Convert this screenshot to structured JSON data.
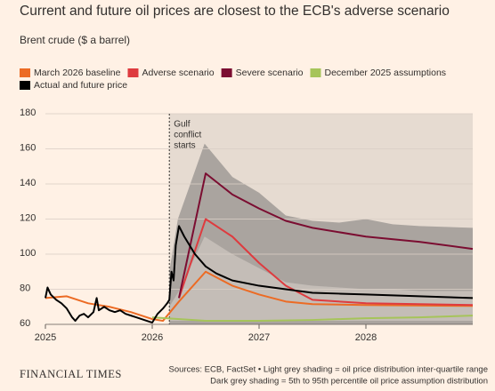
{
  "chart_data": {
    "type": "line",
    "title": "Current and future oil prices are closest to the ECB's adverse scenario",
    "subtitle": "Brent crude ($ a barrel)",
    "xlim": [
      2025,
      2029
    ],
    "xticks": [
      2025,
      2026,
      2027,
      2028
    ],
    "ylim": [
      60,
      180
    ],
    "yticks": [
      60,
      80,
      100,
      120,
      140,
      160,
      180
    ],
    "grid": true,
    "annotation": {
      "lines": [
        "Gulf",
        "conflict",
        "starts"
      ],
      "x": 2026.16,
      "shade_color": "#e6dbd1"
    },
    "bands": [
      {
        "color": "#aaa49f",
        "x": [
          2026.16,
          2026.24,
          2026.49,
          2026.75,
          2027,
          2027.25,
          2027.5,
          2027.75,
          2028,
          2028.25,
          2028.5,
          2029
        ],
        "upper": [
          90,
          120,
          163,
          144,
          135,
          122,
          119,
          118,
          120,
          117,
          116,
          115
        ],
        "lower": [
          60,
          60,
          60,
          60,
          60,
          60,
          60,
          60,
          60,
          60,
          60,
          60
        ]
      },
      {
        "color": "#c4bdb7",
        "x": [
          2026.16,
          2026.24,
          2026.49,
          2026.75,
          2027,
          2027.25,
          2027.5,
          2027.75,
          2028,
          2028.25,
          2028.5,
          2029
        ],
        "upper": [
          70,
          78,
          110,
          100,
          92,
          84,
          82,
          81,
          80,
          80,
          79,
          79
        ],
        "lower": [
          62,
          62,
          62,
          62,
          62,
          62,
          62,
          62,
          62,
          62,
          62,
          62
        ]
      }
    ],
    "series": [
      {
        "name": "March 2026 baseline",
        "color": "#ec6b24",
        "x": [
          2025,
          2025.2,
          2025.4,
          2025.6,
          2025.8,
          2026,
          2026.1,
          2026.25,
          2026.5,
          2026.75,
          2027,
          2027.25,
          2027.5,
          2028,
          2029
        ],
        "values": [
          75,
          76,
          72,
          70,
          67,
          63,
          62,
          73,
          90,
          82,
          77,
          73,
          71.5,
          71,
          70.5
        ]
      },
      {
        "name": "Adverse scenario",
        "color": "#de3b3f",
        "x": [
          2026.25,
          2026.5,
          2026.75,
          2027,
          2027.25,
          2027.5,
          2028,
          2029
        ],
        "values": [
          75,
          120,
          110,
          95,
          82,
          74,
          72,
          71
        ]
      },
      {
        "name": "Severe scenario",
        "color": "#7b0d31",
        "x": [
          2026.25,
          2026.5,
          2026.75,
          2027,
          2027.25,
          2027.5,
          2028,
          2028.5,
          2029
        ],
        "values": [
          75,
          146,
          134,
          126,
          119,
          115,
          110,
          107,
          103
        ]
      },
      {
        "name": "December 2025 assumptions",
        "color": "#a6c45a",
        "x": [
          2026,
          2026.5,
          2027,
          2027.5,
          2028,
          2028.5,
          2029
        ],
        "values": [
          64,
          62,
          62,
          62.5,
          63.5,
          64,
          65
        ]
      },
      {
        "name": "Actual and future price",
        "color": "#000000",
        "x": [
          2025,
          2025.02,
          2025.05,
          2025.1,
          2025.15,
          2025.2,
          2025.25,
          2025.28,
          2025.32,
          2025.36,
          2025.4,
          2025.45,
          2025.48,
          2025.5,
          2025.55,
          2025.6,
          2025.65,
          2025.7,
          2025.75,
          2025.8,
          2025.85,
          2025.9,
          2025.95,
          2026,
          2026.05,
          2026.1,
          2026.14,
          2026.16,
          2026.18,
          2026.2,
          2026.22,
          2026.25,
          2026.3,
          2026.4,
          2026.5,
          2026.6,
          2026.75,
          2027,
          2027.25,
          2027.5,
          2027.75,
          2028,
          2028.25,
          2028.5,
          2028.75,
          2029
        ],
        "values": [
          75,
          81,
          77,
          74,
          72,
          69,
          64,
          62,
          65,
          66,
          64,
          67,
          75,
          68,
          70,
          68,
          67,
          68,
          66,
          65,
          64,
          63,
          62,
          61,
          66,
          69,
          72,
          74,
          90,
          85,
          105,
          116,
          110,
          100,
          93,
          89,
          85,
          82,
          80,
          78,
          77.5,
          77,
          76.5,
          76,
          75.5,
          75
        ]
      }
    ],
    "source_lines": [
      "Sources: ECB, FactSet • Light grey shading = oil price distribution inter-quartile range",
      "Dark grey shading = 5th to 95th percentile oil price assumption distribution"
    ],
    "brand": "FINANCIAL TIMES"
  }
}
